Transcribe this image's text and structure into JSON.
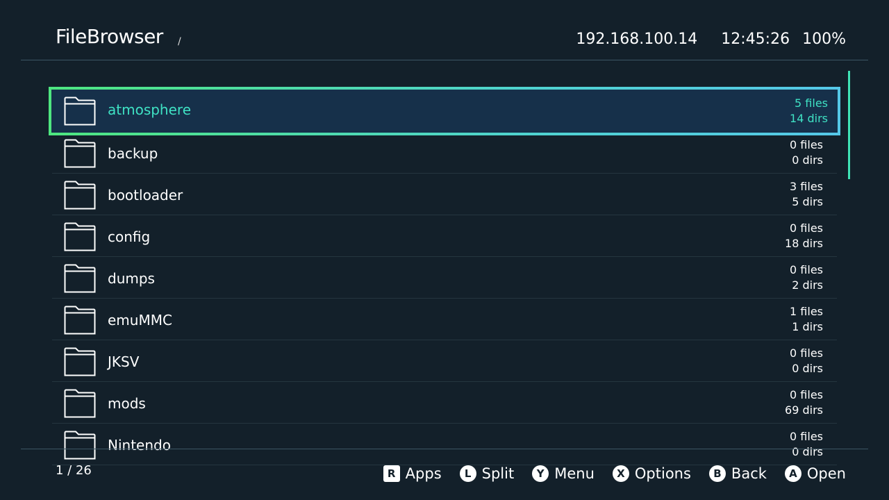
{
  "header": {
    "title": "FileBrowser",
    "path": "/",
    "ip": "192.168.100.14",
    "time": "12:45:26",
    "battery": "100%"
  },
  "colors": {
    "background": "#13202a",
    "accent": "#3fe2c4",
    "selection_border": "#4ee680"
  },
  "list": {
    "items": [
      {
        "name": "atmosphere",
        "files": "5 files",
        "dirs": "14 dirs",
        "icon": "folder-icon",
        "selected": true
      },
      {
        "name": "backup",
        "files": "0 files",
        "dirs": "0 dirs",
        "icon": "folder-icon"
      },
      {
        "name": "bootloader",
        "files": "3 files",
        "dirs": "5 dirs",
        "icon": "folder-icon"
      },
      {
        "name": "config",
        "files": "0 files",
        "dirs": "18 dirs",
        "icon": "folder-icon"
      },
      {
        "name": "dumps",
        "files": "0 files",
        "dirs": "2 dirs",
        "icon": "folder-icon"
      },
      {
        "name": "emuMMC",
        "files": "1 files",
        "dirs": "1 dirs",
        "icon": "folder-icon"
      },
      {
        "name": "JKSV",
        "files": "0 files",
        "dirs": "0 dirs",
        "icon": "folder-icon"
      },
      {
        "name": "mods",
        "files": "0 files",
        "dirs": "69 dirs",
        "icon": "folder-icon"
      },
      {
        "name": "Nintendo",
        "files": "0 files",
        "dirs": "0 dirs",
        "icon": "folder-icon"
      }
    ]
  },
  "footer": {
    "page": "1 / 26",
    "hints": [
      {
        "key": "R",
        "label": "Apps"
      },
      {
        "key": "L",
        "label": "Split"
      },
      {
        "key": "Y",
        "label": "Menu"
      },
      {
        "key": "X",
        "label": "Options"
      },
      {
        "key": "B",
        "label": "Back"
      },
      {
        "key": "A",
        "label": "Open"
      }
    ]
  }
}
